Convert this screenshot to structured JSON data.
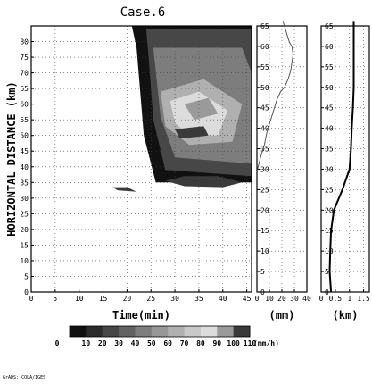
{
  "title": "Case.6",
  "footer": "GrADS: COLA/IGES",
  "chart_data": [
    {
      "type": "heatmap",
      "xlabel": "Time(min)",
      "ylabel": "HORIZONTAL DISTANCE (km)",
      "xlim": [
        0,
        46
      ],
      "ylim": [
        0,
        85
      ],
      "xticks": [
        0,
        5,
        10,
        15,
        20,
        25,
        30,
        35,
        40,
        45
      ],
      "yticks": [
        0,
        5,
        10,
        15,
        20,
        25,
        30,
        35,
        40,
        45,
        50,
        55,
        60,
        65,
        70,
        75,
        80
      ],
      "grid": true,
      "colorbar": {
        "levels": [
          0,
          10,
          20,
          30,
          40,
          50,
          60,
          70,
          80,
          90,
          100,
          110
        ],
        "unit": "(mm/h)",
        "colors": [
          "#111111",
          "#2c2c2c",
          "#474747",
          "#626262",
          "#7d7d7d",
          "#979797",
          "#b0b0b0",
          "#c8c8c8",
          "#dcdcdc",
          "#9a9a9a",
          "#3a3a3a"
        ]
      },
      "regions": [
        {
          "level": 10,
          "polygon": [
            [
              21,
              85
            ],
            [
              46,
              85
            ],
            [
              46,
              35
            ],
            [
              26,
              35
            ],
            [
              23.5,
              50
            ],
            [
              22,
              78
            ]
          ]
        },
        {
          "level": 30,
          "polygon": [
            [
              24,
              84
            ],
            [
              46,
              84
            ],
            [
              46,
              37
            ],
            [
              28,
              39
            ],
            [
              25.5,
              55
            ],
            [
              24.5,
              75
            ]
          ]
        },
        {
          "level": 50,
          "polygon": [
            [
              25.5,
              78
            ],
            [
              44,
              78
            ],
            [
              46,
              70
            ],
            [
              46,
              41
            ],
            [
              30,
              43
            ],
            [
              27,
              56
            ]
          ]
        },
        {
          "level": 70,
          "polygon": [
            [
              27,
              64
            ],
            [
              36,
              68
            ],
            [
              44,
              60
            ],
            [
              42,
              48
            ],
            [
              33,
              47
            ],
            [
              28,
              53
            ]
          ]
        },
        {
          "level": 90,
          "polygon": [
            [
              29,
              61
            ],
            [
              35,
              64
            ],
            [
              41,
              58
            ],
            [
              39,
              50
            ],
            [
              33,
              50
            ],
            [
              30,
              54
            ]
          ]
        },
        {
          "level": 100,
          "polygon": [
            [
              32,
              60
            ],
            [
              37,
              62
            ],
            [
              39,
              57
            ],
            [
              34,
              55
            ]
          ]
        },
        {
          "level": 110,
          "polygon": [
            [
              30,
              52
            ],
            [
              36,
              53
            ],
            [
              37,
              50
            ],
            [
              31,
              49
            ]
          ]
        },
        {
          "level": 110,
          "polygon": [
            [
              28,
              35.5
            ],
            [
              32,
              37
            ],
            [
              39,
              37
            ],
            [
              44,
              35
            ],
            [
              40,
              33.5
            ],
            [
              32,
              33.8
            ]
          ]
        },
        {
          "level": 110,
          "polygon": [
            [
              17,
              33.5
            ],
            [
              20,
              33.5
            ],
            [
              22,
              32
            ],
            [
              18,
              32.5
            ]
          ]
        }
      ]
    },
    {
      "type": "line",
      "xlabel": "(mm)",
      "xlim": [
        0,
        40
      ],
      "ylim": [
        0,
        65
      ],
      "xticks": [
        0,
        10,
        20,
        30,
        40
      ],
      "yticks": [
        0,
        5,
        10,
        15,
        20,
        25,
        30,
        35,
        40,
        45,
        50,
        55,
        60,
        65
      ],
      "grid": true,
      "series": [
        {
          "x": [
            0.5,
            3,
            6,
            8,
            10,
            13,
            16,
            19,
            22,
            25,
            27,
            28,
            29,
            28,
            26,
            25,
            24,
            23,
            22,
            21
          ],
          "y": [
            30,
            33,
            36,
            39,
            41,
            44,
            47,
            49,
            50,
            52,
            54,
            56,
            58,
            60,
            61,
            62,
            63,
            64,
            65,
            66
          ]
        }
      ]
    },
    {
      "type": "line",
      "xlabel": "(km)",
      "xlim": [
        0,
        1.7
      ],
      "ylim": [
        0,
        65
      ],
      "xticks": [
        0,
        0.5,
        1,
        1.5
      ],
      "xticklabels": [
        "0",
        "0.5",
        "1",
        "1.5"
      ],
      "yticks": [
        0,
        5,
        10,
        15,
        20,
        25,
        30,
        35,
        40,
        45,
        50,
        55,
        60,
        65
      ],
      "grid": true,
      "series": [
        {
          "x": [
            0.35,
            0.3,
            0.32,
            0.35,
            0.45,
            0.75,
            1.0,
            1.05,
            1.08,
            1.12,
            1.15,
            1.15,
            1.15
          ],
          "y": [
            0,
            5,
            10,
            15,
            20,
            25,
            30,
            35,
            40,
            45,
            50,
            55,
            66
          ]
        }
      ]
    }
  ]
}
